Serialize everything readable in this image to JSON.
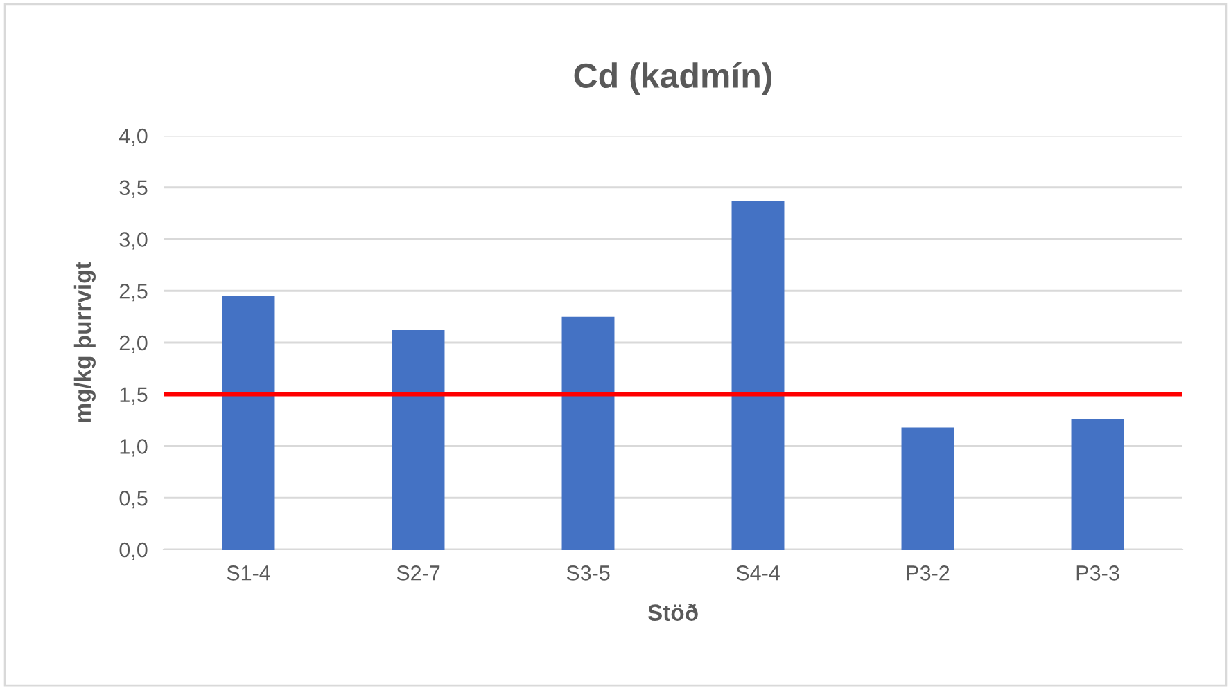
{
  "chart_data": {
    "type": "bar",
    "title": "Cd (kadmín)",
    "xlabel": "Stöð",
    "ylabel": "mg/kg þurrvigt",
    "categories": [
      "S1-4",
      "S2-7",
      "S3-5",
      "S4-4",
      "P3-2",
      "P3-3"
    ],
    "values": [
      2.45,
      2.12,
      2.25,
      3.37,
      1.18,
      1.26
    ],
    "color": "#4472c4",
    "ylim": [
      0,
      4
    ],
    "yticks": [
      {
        "value": 0,
        "label": "0,0"
      },
      {
        "value": 0.5,
        "label": "0,5"
      },
      {
        "value": 1,
        "label": "1,0"
      },
      {
        "value": 1.5,
        "label": "1,5"
      },
      {
        "value": 2,
        "label": "2,0"
      },
      {
        "value": 2.5,
        "label": "2,5"
      },
      {
        "value": 3,
        "label": "3,0"
      },
      {
        "value": 3.5,
        "label": "3,5"
      },
      {
        "value": 4,
        "label": "4,0"
      }
    ],
    "grid": "y",
    "ref_lines": [
      {
        "axis": "y",
        "value": 1.5,
        "color": "#ff0000"
      }
    ]
  }
}
